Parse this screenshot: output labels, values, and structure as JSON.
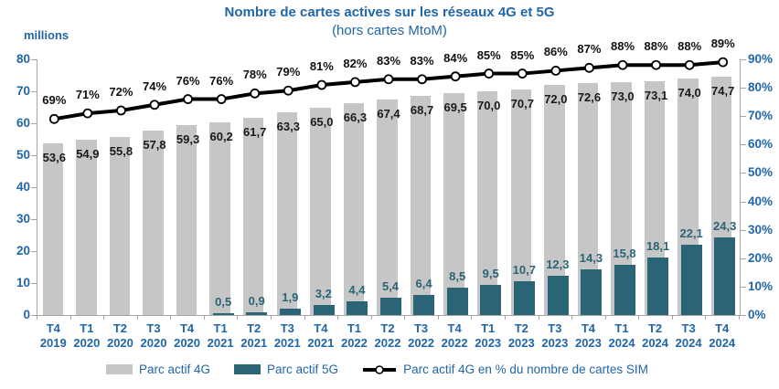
{
  "title": "Nombre de cartes actives sur les réseaux 4G et 5G",
  "subtitle": "(hors cartes MtoM)",
  "colors": {
    "accent_text": "#2166A8",
    "bar_4g": "#C6C6C6",
    "bar_5g": "#2B6477",
    "trend_line": "#000000",
    "marker_fill": "#FFFFFF",
    "axis_line": "#A6A6A6",
    "value_label_4g": "#1a1a1a",
    "value_label_5g": "#2B6477",
    "pct_label": "#111111"
  },
  "chart_data": {
    "type": "bar+line",
    "number_format": "fr-comma",
    "grid": false,
    "legend_position": "bottom",
    "categories": [
      {
        "q": "T4",
        "year": "2019"
      },
      {
        "q": "T1",
        "year": "2020"
      },
      {
        "q": "T2",
        "year": "2020"
      },
      {
        "q": "T3",
        "year": "2020"
      },
      {
        "q": "T4",
        "year": "2020"
      },
      {
        "q": "T1",
        "year": "2021"
      },
      {
        "q": "T2",
        "year": "2021"
      },
      {
        "q": "T3",
        "year": "2021"
      },
      {
        "q": "T4",
        "year": "2021"
      },
      {
        "q": "T1",
        "year": "2022"
      },
      {
        "q": "T2",
        "year": "2022"
      },
      {
        "q": "T3",
        "year": "2022"
      },
      {
        "q": "T4",
        "year": "2022"
      },
      {
        "q": "T1",
        "year": "2023"
      },
      {
        "q": "T2",
        "year": "2023"
      },
      {
        "q": "T3",
        "year": "2023"
      },
      {
        "q": "T4",
        "year": "2023"
      },
      {
        "q": "T1",
        "year": "2024"
      },
      {
        "q": "T2",
        "year": "2024"
      },
      {
        "q": "T3",
        "year": "2024"
      },
      {
        "q": "T4",
        "year": "2024"
      }
    ],
    "series": [
      {
        "name": "Parc actif 4G",
        "type": "bar",
        "axis": "left",
        "color": "#C6C6C6",
        "values": [
          53.6,
          54.9,
          55.8,
          57.8,
          59.3,
          60.2,
          61.7,
          63.3,
          65.0,
          66.3,
          67.4,
          68.7,
          69.5,
          70.0,
          70.7,
          72.0,
          72.6,
          73.0,
          73.1,
          74.0,
          74.7
        ]
      },
      {
        "name": "Parc actif 5G",
        "type": "bar",
        "axis": "left",
        "color": "#2B6477",
        "values": [
          null,
          null,
          null,
          null,
          null,
          0.5,
          0.9,
          1.9,
          3.2,
          4.4,
          5.4,
          6.4,
          8.5,
          9.5,
          10.7,
          12.3,
          14.3,
          15.8,
          18.1,
          22.1,
          24.3
        ]
      },
      {
        "name": "Parc actif 4G en % du nombre de cartes SIM",
        "type": "line",
        "axis": "right",
        "color": "#000000",
        "values": [
          69,
          71,
          72,
          74,
          76,
          76,
          78,
          79,
          81,
          82,
          83,
          83,
          84,
          85,
          85,
          86,
          87,
          88,
          88,
          88,
          89
        ]
      }
    ],
    "left_axis": {
      "unit": "millions",
      "min": 0,
      "max": 80,
      "step": 10
    },
    "right_axis": {
      "min": 0,
      "max": 90,
      "step": 10,
      "suffix": "%"
    }
  }
}
